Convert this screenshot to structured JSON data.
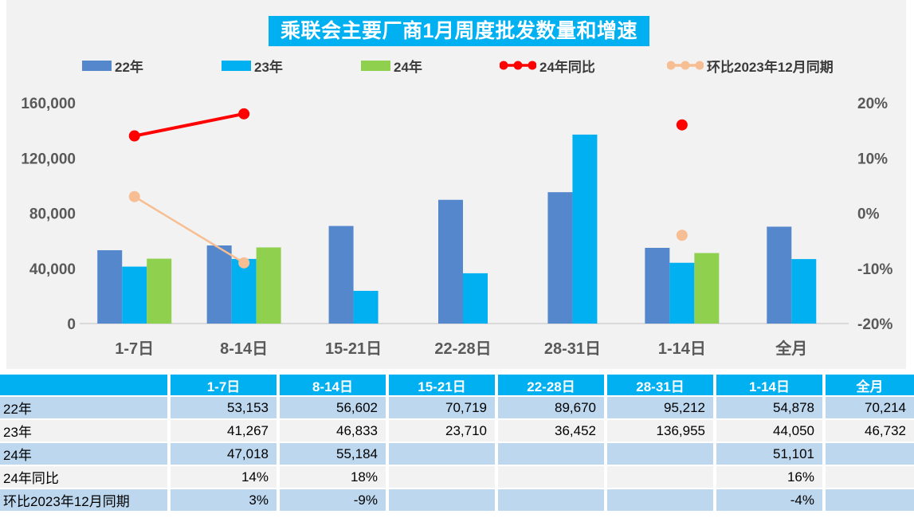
{
  "title": "乘联会主要厂商1月周度批发数量和增速",
  "colors": {
    "accent": "#00B0F0",
    "panel_bg": "#F2F2F2",
    "axis_text": "#595959",
    "baseline": "#D9D9D9",
    "band_blue": "#BDD7EE",
    "band_gray": "#F2F2F2",
    "bar_22": "#5587CD",
    "bar_23": "#00B0F0",
    "bar_24": "#90D04F",
    "line_yoy": "#FE0000",
    "line_mom": "#F6BE92"
  },
  "chart_data": {
    "type": "bar+line combo",
    "title": "乘联会主要厂商1月周度批发数量和增速",
    "categories": [
      "1-7日",
      "8-14日",
      "15-21日",
      "22-28日",
      "28-31日",
      "1-14日",
      "全月"
    ],
    "series": [
      {
        "name": "22年",
        "type": "bar",
        "axis": "left",
        "color": "#5587CD",
        "values": [
          53153,
          56602,
          70719,
          89670,
          95212,
          54878,
          70214
        ]
      },
      {
        "name": "23年",
        "type": "bar",
        "axis": "left",
        "color": "#00B0F0",
        "values": [
          41267,
          46833,
          23710,
          36452,
          136955,
          44050,
          46732
        ]
      },
      {
        "name": "24年",
        "type": "bar",
        "axis": "left",
        "color": "#90D04F",
        "values": [
          47018,
          55184,
          null,
          null,
          null,
          51101,
          null
        ]
      },
      {
        "name": "24年同比",
        "type": "line",
        "axis": "right",
        "unit": "%",
        "color": "#FE0000",
        "values": [
          14,
          18,
          null,
          null,
          null,
          16,
          null
        ]
      },
      {
        "name": "环比2023年12月同期",
        "type": "line",
        "axis": "right",
        "unit": "%",
        "color": "#F6BE92",
        "values": [
          3,
          -9,
          null,
          null,
          null,
          -4,
          null
        ]
      }
    ],
    "left_axis": {
      "min": 0,
      "max": 160000,
      "tick_step": 40000,
      "tick_labels": [
        "0",
        "40,000",
        "80,000",
        "120,000",
        "160,000"
      ]
    },
    "right_axis": {
      "min": -20,
      "max": 20,
      "tick_step": 10,
      "tick_labels": [
        "-20%",
        "-10%",
        "0%",
        "10%",
        "20%"
      ]
    },
    "grid": "off",
    "legend_position": "top"
  },
  "table": {
    "columns": [
      "",
      "1-7日",
      "8-14日",
      "15-21日",
      "22-28日",
      "28-31日",
      "1-14日",
      "全月"
    ],
    "rows": [
      {
        "label": "22年",
        "values": [
          "53,153",
          "56,602",
          "70,719",
          "89,670",
          "95,212",
          "54,878",
          "70,214"
        ]
      },
      {
        "label": "23年",
        "values": [
          "41,267",
          "46,833",
          "23,710",
          "36,452",
          "136,955",
          "44,050",
          "46,732"
        ]
      },
      {
        "label": "24年",
        "values": [
          "47,018",
          "55,184",
          "",
          "",
          "",
          "51,101",
          ""
        ]
      },
      {
        "label": "24年同比",
        "values": [
          "14%",
          "18%",
          "",
          "",
          "",
          "16%",
          ""
        ]
      },
      {
        "label": "环比2023年12月同期",
        "values": [
          "3%",
          "-9%",
          "",
          "",
          "",
          "-4%",
          ""
        ]
      }
    ]
  }
}
